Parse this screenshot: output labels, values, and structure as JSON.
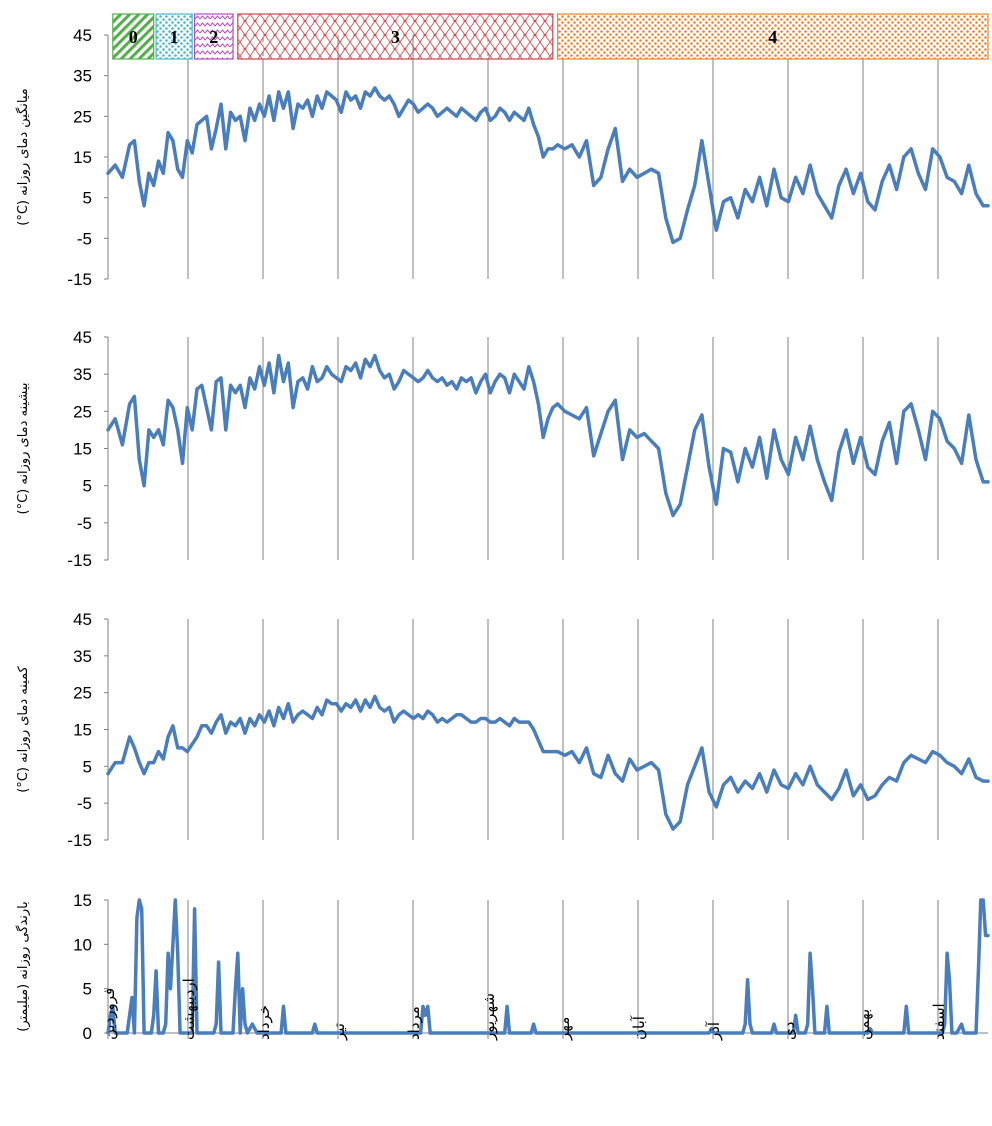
{
  "colors": {
    "series": "#4a7ebb",
    "axis": "#808080",
    "grid": "#808080"
  },
  "months": [
    "فروردین",
    "اردیبهشت",
    "خرداد",
    "تیر",
    "مرداد",
    "شهریور",
    "مهر",
    "آبان",
    "آذر",
    "دی",
    "بهمن",
    "اسفند"
  ],
  "phases": [
    {
      "label": "0",
      "color": "#52b04a",
      "pattern": "stripes",
      "start_day": 2,
      "end_day": 19
    },
    {
      "label": "1",
      "color": "#4ab8cc",
      "pattern": "dots",
      "start_day": 20,
      "end_day": 35
    },
    {
      "label": "2",
      "color": "#b84ac0",
      "pattern": "zigzag",
      "start_day": 36,
      "end_day": 52
    },
    {
      "label": "3",
      "color": "#c8474a",
      "pattern": "lattice",
      "start_day": 54,
      "end_day": 185
    },
    {
      "label": "4",
      "color": "#e8882a",
      "pattern": "dots",
      "start_day": 187,
      "end_day": 366
    }
  ],
  "chart_data": [
    {
      "type": "line",
      "ylabel": "میانگین دمای روزانه (C°)",
      "ylim": [
        -15,
        45
      ],
      "yticks": [
        45,
        35,
        25,
        15,
        5,
        -5,
        -15
      ],
      "xlim": [
        0,
        366
      ],
      "grid": "vertical month boundaries",
      "x": [
        0,
        3,
        6,
        9,
        11,
        13,
        15,
        17,
        19,
        21,
        23,
        25,
        27,
        29,
        31,
        33,
        35,
        37,
        39,
        41,
        43,
        45,
        47,
        49,
        51,
        53,
        55,
        57,
        59,
        61,
        63,
        65,
        67,
        69,
        71,
        73,
        75,
        77,
        79,
        81,
        83,
        85,
        87,
        89,
        91,
        93,
        95,
        97,
        99,
        101,
        103,
        105,
        107,
        109,
        111,
        113,
        115,
        117,
        119,
        121,
        123,
        125,
        127,
        129,
        131,
        133,
        135,
        137,
        139,
        141,
        143,
        145,
        147,
        149,
        151,
        153,
        155,
        157,
        159,
        161,
        163,
        165,
        167,
        169,
        171,
        173,
        175,
        177,
        179,
        181,
        183,
        185,
        187,
        190,
        193,
        196,
        199,
        202,
        205,
        208,
        211,
        214,
        217,
        220,
        223,
        226,
        229,
        232,
        235,
        238,
        241,
        244,
        247,
        250,
        253,
        256,
        259,
        262,
        265,
        268,
        271,
        274,
        277,
        280,
        283,
        286,
        289,
        292,
        295,
        298,
        301,
        304,
        307,
        310,
        313,
        316,
        319,
        322,
        325,
        328,
        331,
        334,
        337,
        340,
        343,
        346,
        349,
        352,
        355,
        358,
        361,
        364,
        366
      ],
      "series": [
        {
          "values": [
            11,
            13,
            10,
            18,
            19,
            9,
            3,
            11,
            8,
            14,
            11,
            21,
            19,
            12,
            10,
            19,
            16,
            23,
            24,
            25,
            17,
            22,
            28,
            17,
            26,
            24,
            25,
            19,
            27,
            24,
            28,
            25,
            30,
            24,
            31,
            27,
            31,
            22,
            28,
            27,
            29,
            25,
            30,
            27,
            31,
            30,
            29,
            26,
            31,
            29,
            30,
            27,
            31,
            30,
            32,
            30,
            29,
            30,
            28,
            25,
            27,
            29,
            28,
            26,
            27,
            28,
            27,
            25,
            26,
            27,
            26,
            25,
            27,
            26,
            25,
            24,
            26,
            27,
            24,
            25,
            27,
            26,
            24,
            26,
            25,
            24,
            27,
            23,
            20,
            15,
            17,
            17,
            18,
            17,
            18,
            15,
            19,
            8,
            10,
            17,
            22,
            9,
            12,
            10,
            11,
            12,
            11,
            0,
            -6,
            -5,
            2,
            8,
            19,
            8,
            -3,
            4,
            5,
            0,
            7,
            4,
            10,
            3,
            12,
            5,
            4,
            10,
            6,
            13,
            6,
            3,
            0,
            8,
            12,
            6,
            11,
            4,
            2,
            9,
            13,
            7,
            15,
            17,
            11,
            7,
            17,
            15,
            10,
            9,
            6,
            13,
            6,
            3,
            3
          ]
        }
      ]
    },
    {
      "type": "line",
      "ylabel": "بیشینه دمای روزانه (C°)",
      "ylim": [
        -15,
        45
      ],
      "yticks": [
        45,
        35,
        25,
        15,
        5,
        -5,
        -15
      ],
      "xlim": [
        0,
        366
      ],
      "grid": "vertical month boundaries",
      "x": [
        0,
        3,
        6,
        9,
        11,
        13,
        15,
        17,
        19,
        21,
        23,
        25,
        27,
        29,
        31,
        33,
        35,
        37,
        39,
        41,
        43,
        45,
        47,
        49,
        51,
        53,
        55,
        57,
        59,
        61,
        63,
        65,
        67,
        69,
        71,
        73,
        75,
        77,
        79,
        81,
        83,
        85,
        87,
        89,
        91,
        93,
        95,
        97,
        99,
        101,
        103,
        105,
        107,
        109,
        111,
        113,
        115,
        117,
        119,
        121,
        123,
        125,
        127,
        129,
        131,
        133,
        135,
        137,
        139,
        141,
        143,
        145,
        147,
        149,
        151,
        153,
        155,
        157,
        159,
        161,
        163,
        165,
        167,
        169,
        171,
        173,
        175,
        177,
        179,
        181,
        183,
        185,
        187,
        190,
        193,
        196,
        199,
        202,
        205,
        208,
        211,
        214,
        217,
        220,
        223,
        226,
        229,
        232,
        235,
        238,
        241,
        244,
        247,
        250,
        253,
        256,
        259,
        262,
        265,
        268,
        271,
        274,
        277,
        280,
        283,
        286,
        289,
        292,
        295,
        298,
        301,
        304,
        307,
        310,
        313,
        316,
        319,
        322,
        325,
        328,
        331,
        334,
        337,
        340,
        343,
        346,
        349,
        352,
        355,
        358,
        361,
        364,
        366
      ],
      "series": [
        {
          "values": [
            20,
            23,
            16,
            27,
            29,
            12,
            5,
            20,
            18,
            20,
            16,
            28,
            26,
            20,
            11,
            26,
            20,
            31,
            32,
            26,
            20,
            33,
            34,
            20,
            32,
            30,
            32,
            26,
            34,
            31,
            37,
            32,
            38,
            30,
            40,
            33,
            38,
            26,
            33,
            34,
            31,
            37,
            33,
            34,
            37,
            35,
            34,
            33,
            37,
            36,
            38,
            34,
            39,
            37,
            40,
            36,
            34,
            35,
            31,
            33,
            36,
            35,
            34,
            33,
            34,
            36,
            34,
            33,
            34,
            32,
            33,
            31,
            34,
            33,
            34,
            30,
            33,
            35,
            30,
            33,
            35,
            34,
            30,
            35,
            33,
            31,
            37,
            33,
            27,
            18,
            23,
            26,
            27,
            25,
            24,
            23,
            26,
            13,
            19,
            25,
            28,
            12,
            20,
            18,
            19,
            17,
            15,
            3,
            -3,
            0,
            10,
            20,
            24,
            10,
            0,
            15,
            14,
            6,
            15,
            10,
            18,
            7,
            20,
            12,
            8,
            18,
            12,
            21,
            12,
            6,
            1,
            14,
            20,
            11,
            18,
            10,
            8,
            17,
            22,
            11,
            25,
            27,
            20,
            12,
            25,
            23,
            17,
            15,
            11,
            24,
            12,
            6,
            6
          ]
        }
      ]
    },
    {
      "type": "line",
      "ylabel": "کمینه دمای روزانه (C°)",
      "ylim": [
        -15,
        45
      ],
      "yticks": [
        45,
        35,
        25,
        15,
        5,
        -5,
        -15
      ],
      "xlim": [
        0,
        366
      ],
      "grid": "vertical month boundaries",
      "x": [
        0,
        3,
        6,
        9,
        11,
        13,
        15,
        17,
        19,
        21,
        23,
        25,
        27,
        29,
        31,
        33,
        35,
        37,
        39,
        41,
        43,
        45,
        47,
        49,
        51,
        53,
        55,
        57,
        59,
        61,
        63,
        65,
        67,
        69,
        71,
        73,
        75,
        77,
        79,
        81,
        83,
        85,
        87,
        89,
        91,
        93,
        95,
        97,
        99,
        101,
        103,
        105,
        107,
        109,
        111,
        113,
        115,
        117,
        119,
        121,
        123,
        125,
        127,
        129,
        131,
        133,
        135,
        137,
        139,
        141,
        143,
        145,
        147,
        149,
        151,
        153,
        155,
        157,
        159,
        161,
        163,
        165,
        167,
        169,
        171,
        173,
        175,
        177,
        179,
        181,
        183,
        185,
        187,
        190,
        193,
        196,
        199,
        202,
        205,
        208,
        211,
        214,
        217,
        220,
        223,
        226,
        229,
        232,
        235,
        238,
        241,
        244,
        247,
        250,
        253,
        256,
        259,
        262,
        265,
        268,
        271,
        274,
        277,
        280,
        283,
        286,
        289,
        292,
        295,
        298,
        301,
        304,
        307,
        310,
        313,
        316,
        319,
        322,
        325,
        328,
        331,
        334,
        337,
        340,
        343,
        346,
        349,
        352,
        355,
        358,
        361,
        364,
        366
      ],
      "series": [
        {
          "values": [
            3,
            6,
            6,
            13,
            10,
            6,
            3,
            6,
            6,
            9,
            7,
            13,
            16,
            10,
            10,
            9,
            11,
            13,
            16,
            16,
            14,
            17,
            19,
            14,
            17,
            16,
            18,
            14,
            18,
            16,
            19,
            17,
            20,
            16,
            21,
            18,
            22,
            17,
            19,
            20,
            19,
            18,
            21,
            19,
            23,
            22,
            22,
            20,
            22,
            21,
            23,
            20,
            23,
            21,
            24,
            21,
            20,
            21,
            17,
            19,
            20,
            19,
            18,
            19,
            18,
            20,
            19,
            17,
            18,
            17,
            18,
            19,
            19,
            18,
            17,
            17,
            18,
            18,
            17,
            17,
            18,
            17,
            16,
            18,
            17,
            17,
            17,
            15,
            12,
            9,
            9,
            9,
            9,
            8,
            9,
            6,
            10,
            3,
            2,
            8,
            3,
            1,
            7,
            4,
            5,
            6,
            4,
            -8,
            -12,
            -10,
            0,
            5,
            10,
            -2,
            -6,
            0,
            2,
            -2,
            1,
            -1,
            3,
            -2,
            4,
            0,
            -1,
            3,
            0,
            5,
            0,
            -2,
            -4,
            -1,
            4,
            -3,
            0,
            -4,
            -3,
            0,
            2,
            1,
            6,
            8,
            7,
            6,
            9,
            8,
            6,
            5,
            3,
            7,
            2,
            1,
            1
          ]
        }
      ]
    },
    {
      "type": "line",
      "ylabel": "بارندگی روزانه (میلیمتر)",
      "ylim": [
        0,
        15
      ],
      "yticks": [
        15,
        10,
        5,
        0
      ],
      "xlim": [
        0,
        366
      ],
      "grid": "vertical month boundaries",
      "x": [
        0,
        1,
        2,
        3,
        4,
        6,
        8,
        10,
        11,
        12,
        13,
        14,
        15,
        16,
        18,
        19,
        20,
        21,
        22,
        23,
        24,
        25,
        26,
        28,
        29,
        30,
        31,
        35,
        36,
        37,
        38,
        44,
        45,
        46,
        47,
        52,
        53,
        54,
        55,
        56,
        57,
        58,
        60,
        62,
        72,
        73,
        74,
        85,
        86,
        87,
        130,
        131,
        132,
        133,
        134,
        165,
        166,
        167,
        176,
        177,
        178,
        250,
        251,
        252,
        264,
        265,
        266,
        267,
        268,
        276,
        277,
        278,
        285,
        286,
        287,
        290,
        291,
        292,
        293,
        294,
        298,
        299,
        300,
        316,
        317,
        318,
        331,
        332,
        333,
        347,
        348,
        349,
        350,
        351,
        352,
        353,
        355,
        356,
        357,
        361,
        362,
        363,
        364,
        365,
        366
      ],
      "series": [
        {
          "values": [
            0,
            2,
            3,
            0,
            0,
            0,
            0,
            4,
            0,
            13,
            15,
            14,
            0,
            0,
            0,
            2,
            7,
            0,
            0,
            0,
            1,
            9,
            5,
            15,
            9,
            0,
            0,
            0,
            14,
            0,
            0,
            0,
            1,
            8,
            0,
            0,
            5,
            9,
            0,
            5,
            1,
            0,
            1,
            0,
            0,
            3,
            0,
            0,
            1,
            0,
            0,
            3,
            2,
            3,
            0,
            0,
            3,
            0,
            0,
            1,
            0,
            0,
            0.5,
            0,
            0,
            1,
            6,
            1,
            0,
            0,
            1,
            0,
            0,
            2,
            0,
            0,
            1,
            9,
            5,
            0,
            0,
            3,
            0,
            0,
            0.5,
            0,
            0,
            3,
            0,
            0,
            1,
            9,
            6,
            0,
            0,
            0,
            1,
            0,
            0,
            0,
            7,
            15,
            15,
            11,
            11
          ]
        }
      ]
    }
  ]
}
